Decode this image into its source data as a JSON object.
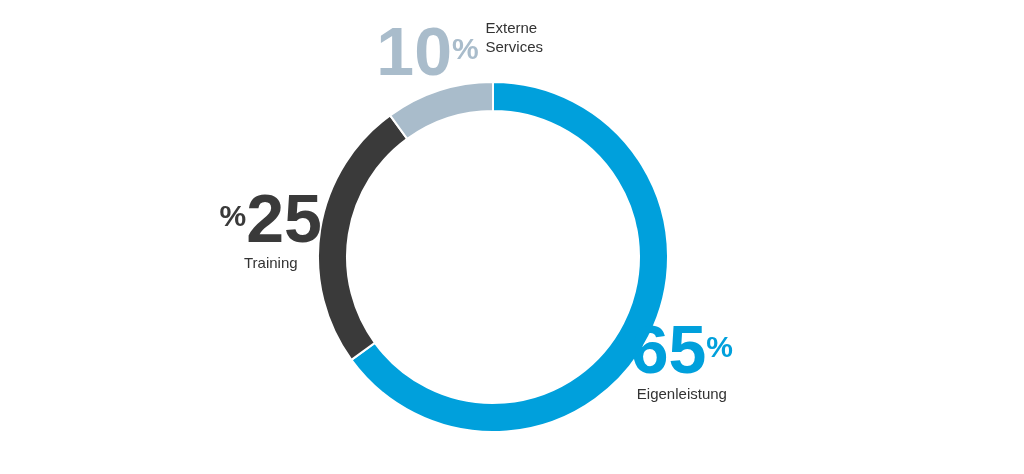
{
  "chart_data": {
    "type": "donut",
    "categories": [
      "Eigenleistung",
      "Training",
      "Externe Services"
    ],
    "values": [
      65,
      25,
      10
    ],
    "value_labels": [
      "65$^{%}$",
      "$^{%}$25",
      "10$^{%}$"
    ],
    "colors": [
      "#00a0dc",
      "#3a3a3a",
      "#a9bccb"
    ]
  }
}
